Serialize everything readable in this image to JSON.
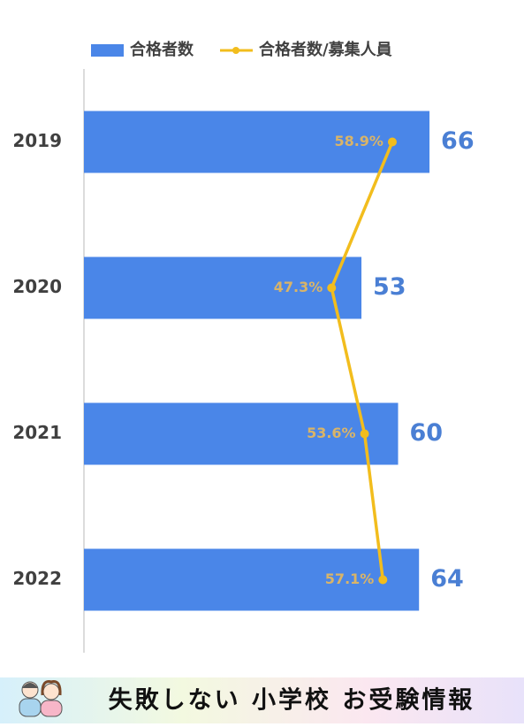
{
  "chart_data": {
    "type": "bar",
    "orientation": "horizontal",
    "categories": [
      "2019",
      "2020",
      "2021",
      "2022"
    ],
    "series": [
      {
        "name": "合格者数",
        "type": "bar",
        "color": "#4a86e8",
        "values": [
          66,
          53,
          60,
          64
        ]
      },
      {
        "name": "合格者数/募集人員",
        "type": "line",
        "axis": "x2",
        "color": "#f2bd1d",
        "values": [
          58.9,
          47.3,
          53.6,
          57.1
        ],
        "value_labels": [
          "58.9%",
          "47.3%",
          "53.6%",
          "57.1%"
        ]
      }
    ],
    "xlim": [
      0,
      80
    ],
    "x2lim": [
      0,
      80
    ],
    "legend": "top",
    "grid": false
  },
  "banner": {
    "text": "失敗しない 小学校 お受験情報"
  }
}
